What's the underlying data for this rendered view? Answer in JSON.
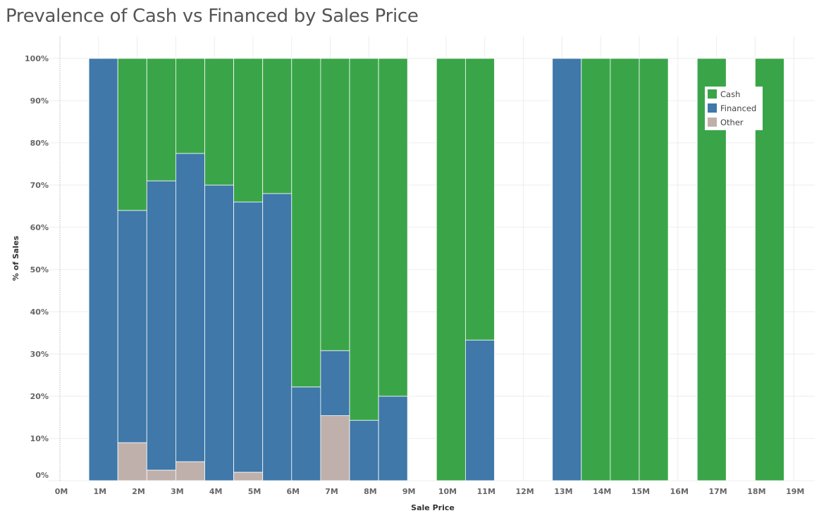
{
  "colors": {
    "Cash": "#3aa548",
    "Financed": "#3f78a9",
    "Other": "#bfb0ac",
    "grid": "#ececec"
  },
  "chart_data": {
    "type": "bar",
    "stacked": true,
    "title": "Prevalence of Cash vs Financed by Sales Price",
    "xlabel": "Sale Price",
    "ylabel": "% of Sales",
    "xlim": [
      0,
      19.8
    ],
    "ylim": [
      0,
      100
    ],
    "x_ticks": [
      "0M",
      "1M",
      "2M",
      "3M",
      "4M",
      "5M",
      "6M",
      "7M",
      "8M",
      "9M",
      "10M",
      "11M",
      "12M",
      "13M",
      "14M",
      "15M",
      "16M",
      "17M",
      "18M",
      "19M"
    ],
    "y_ticks": [
      "0%",
      "10%",
      "20%",
      "30%",
      "40%",
      "50%",
      "60%",
      "70%",
      "80%",
      "90%",
      "100%"
    ],
    "legend": [
      "Cash",
      "Financed",
      "Other"
    ],
    "legend_position": "top-right",
    "bins": [
      {
        "x0": 0.75,
        "x1": 1.5,
        "Other": 0,
        "Financed": 100,
        "Cash": 0
      },
      {
        "x0": 1.5,
        "x1": 2.25,
        "Other": 9,
        "Financed": 55,
        "Cash": 36
      },
      {
        "x0": 2.25,
        "x1": 3.0,
        "Other": 2.5,
        "Financed": 68.5,
        "Cash": 29
      },
      {
        "x0": 3.0,
        "x1": 3.75,
        "Other": 4.5,
        "Financed": 73,
        "Cash": 22.5
      },
      {
        "x0": 3.75,
        "x1": 4.5,
        "Other": 0,
        "Financed": 70,
        "Cash": 30
      },
      {
        "x0": 4.5,
        "x1": 5.25,
        "Other": 2,
        "Financed": 64,
        "Cash": 34
      },
      {
        "x0": 5.25,
        "x1": 6.0,
        "Other": 0,
        "Financed": 68,
        "Cash": 32
      },
      {
        "x0": 6.0,
        "x1": 6.75,
        "Other": 0,
        "Financed": 22.2,
        "Cash": 77.8
      },
      {
        "x0": 6.75,
        "x1": 7.5,
        "Other": 15.4,
        "Financed": 15.4,
        "Cash": 69.2
      },
      {
        "x0": 7.5,
        "x1": 8.25,
        "Other": 0,
        "Financed": 14.3,
        "Cash": 85.7
      },
      {
        "x0": 8.25,
        "x1": 9.0,
        "Other": 0,
        "Financed": 20,
        "Cash": 80
      },
      {
        "x0": 9.75,
        "x1": 10.5,
        "Other": 0,
        "Financed": 0,
        "Cash": 100
      },
      {
        "x0": 10.5,
        "x1": 11.25,
        "Other": 0,
        "Financed": 33.3,
        "Cash": 66.7
      },
      {
        "x0": 12.75,
        "x1": 13.5,
        "Other": 0,
        "Financed": 100,
        "Cash": 0
      },
      {
        "x0": 13.5,
        "x1": 14.25,
        "Other": 0,
        "Financed": 0,
        "Cash": 100
      },
      {
        "x0": 14.25,
        "x1": 15.0,
        "Other": 0,
        "Financed": 0,
        "Cash": 100
      },
      {
        "x0": 15.0,
        "x1": 15.75,
        "Other": 0,
        "Financed": 0,
        "Cash": 100
      },
      {
        "x0": 16.5,
        "x1": 17.25,
        "Other": 0,
        "Financed": 0,
        "Cash": 100
      },
      {
        "x0": 18.0,
        "x1": 18.75,
        "Other": 0,
        "Financed": 0,
        "Cash": 100
      }
    ]
  }
}
